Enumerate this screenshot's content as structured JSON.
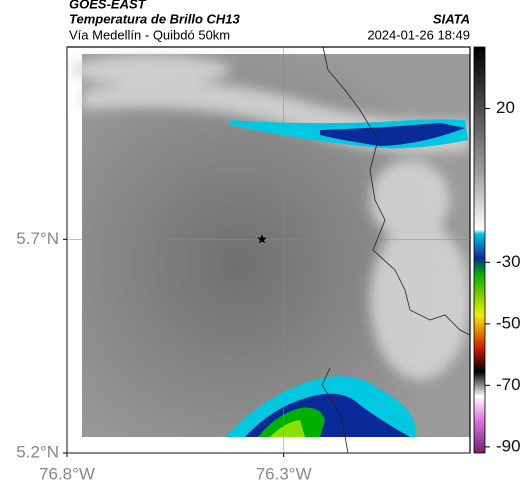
{
  "header": {
    "source": "GOES-EAST",
    "title": "Temperatura de Brillo CH13",
    "org": "SIATA",
    "region": "Vía Medellín - Quibdó 50km",
    "datetime": "2024-01-26 18:49"
  },
  "map": {
    "xlim": [
      -76.8,
      -75.87
    ],
    "ylim": [
      5.2,
      6.15
    ],
    "xticks": [
      {
        "value": -76.8,
        "label": "76.8°W"
      },
      {
        "value": -76.3,
        "label": "76.3°W"
      }
    ],
    "yticks": [
      {
        "value": 5.7,
        "label": "5.7°N"
      },
      {
        "value": 5.2,
        "label": "5.2°N"
      }
    ],
    "grid": true,
    "marker": {
      "lon": -76.35,
      "lat": 5.7
    }
  },
  "colorbar": {
    "lim": [
      -92,
      40
    ],
    "ticks": [
      20,
      -30,
      -50,
      -70,
      -90
    ]
  }
}
